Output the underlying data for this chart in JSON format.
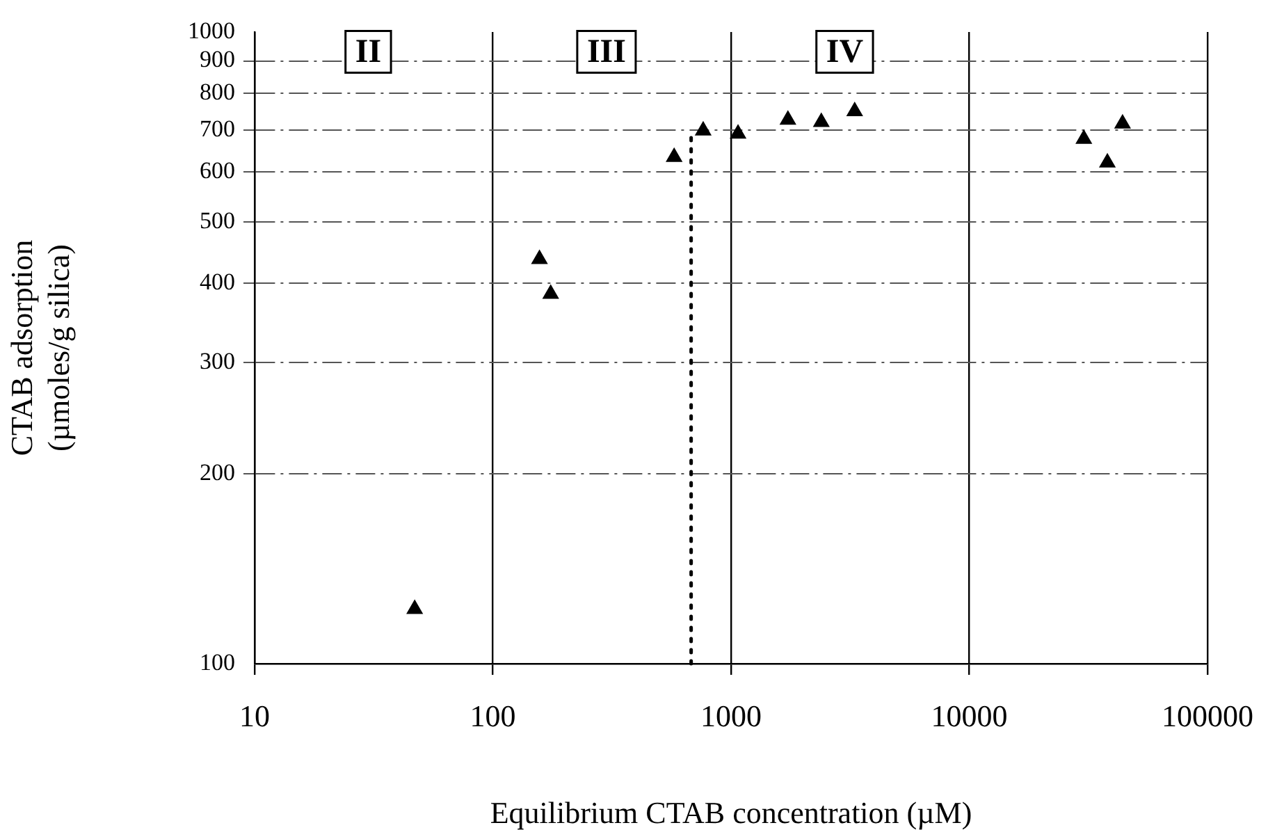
{
  "chart_data": {
    "type": "scatter",
    "xlabel": "Equilibrium CTAB concentration (µM)",
    "ylabel": "CTAB adsorption\n(µmoles/g silica)",
    "x": [
      47,
      157,
      175,
      577,
      764,
      1070,
      1733,
      2393,
      3304,
      30270,
      38000,
      44000
    ],
    "values": [
      122,
      437,
      385,
      634,
      698,
      690,
      726,
      720,
      749,
      677,
      621,
      716
    ],
    "color": "#000000",
    "marker": "triangle",
    "log": "xy",
    "xlim": [
      10,
      100000
    ],
    "xticks": [
      10,
      100,
      1000,
      10000,
      100000
    ],
    "ylim": [
      100,
      1000
    ],
    "yticks": [
      100,
      200,
      300,
      400,
      500,
      600,
      700,
      800,
      900,
      1000
    ],
    "grid": true,
    "legend": false,
    "ref_lines": [
      {
        "axis": "x",
        "value": 680,
        "label": null,
        "color": "#000000",
        "line_style": "dotted"
      }
    ],
    "annotations": [
      {
        "text": "II",
        "x": 30,
        "y": 930
      },
      {
        "text": "III",
        "x": 300,
        "y": 930
      },
      {
        "text": "IV",
        "x": 3000,
        "y": 930
      }
    ]
  }
}
